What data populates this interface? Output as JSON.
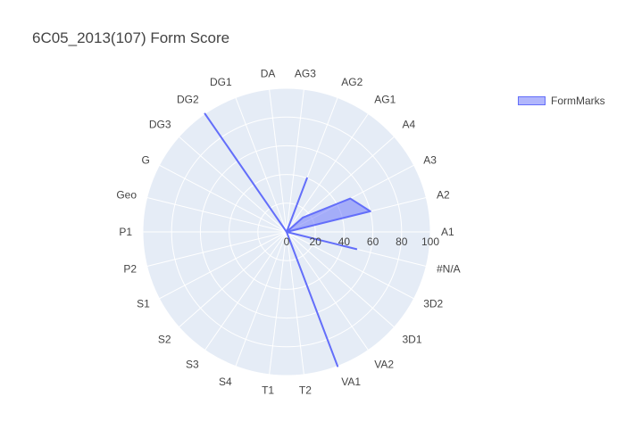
{
  "chart_data": {
    "type": "radar",
    "title": "6C05_2013(107) Form Score",
    "categories": [
      "A1",
      "A2",
      "A3",
      "A4",
      "AG1",
      "AG2",
      "AG3",
      "DA",
      "DG1",
      "DG2",
      "DG3",
      "G",
      "Geo",
      "P1",
      "P2",
      "S1",
      "S2",
      "S3",
      "S4",
      "T1",
      "T2",
      "VA1",
      "VA2",
      "3D1",
      "3D2",
      "#N/A"
    ],
    "radial_ticks": [
      0,
      20,
      40,
      60,
      80,
      100
    ],
    "rlim": [
      0,
      100
    ],
    "series": [
      {
        "name": "FormMarks",
        "values": [
          0,
          60,
          50,
          15,
          0,
          40,
          0,
          0,
          0,
          100,
          0,
          0,
          0,
          0,
          0,
          0,
          0,
          0,
          0,
          0,
          0,
          100,
          0,
          0,
          0,
          50
        ],
        "line_color": "#636efa",
        "fill_color": "rgba(99,110,250,0.5)"
      }
    ],
    "legend_position": "top-right",
    "background_color": "#e5ecf6",
    "grid": true
  }
}
